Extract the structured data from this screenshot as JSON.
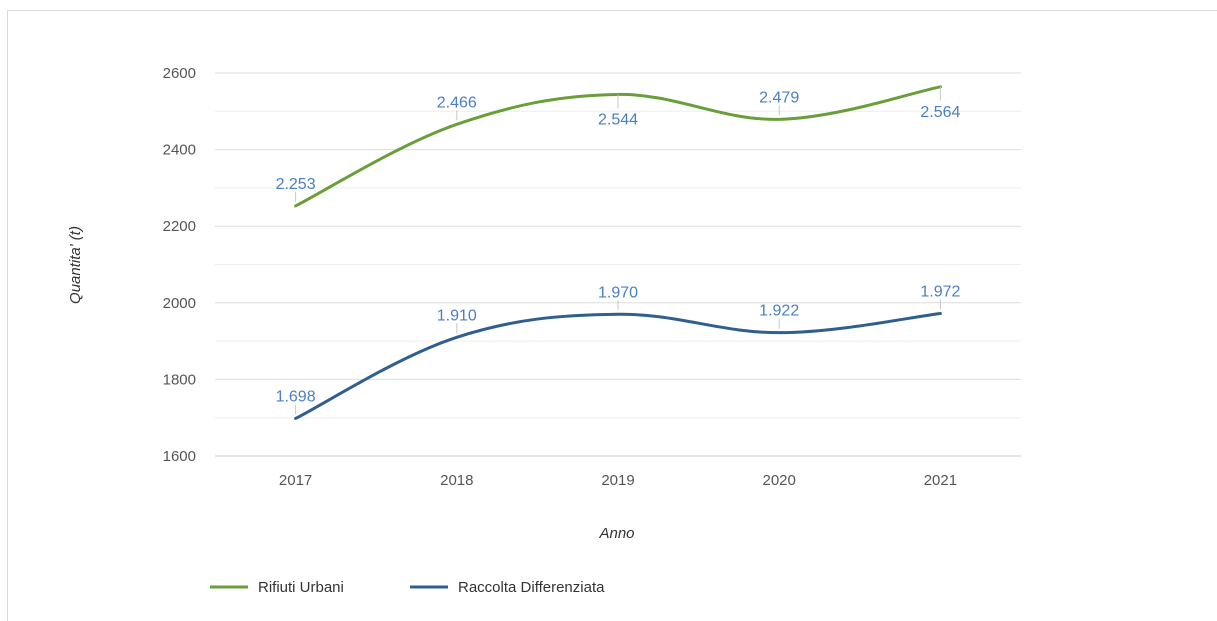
{
  "chart_data": {
    "type": "line",
    "categories": [
      "2017",
      "2018",
      "2019",
      "2020",
      "2021"
    ],
    "xlabel": "Anno",
    "ylabel": "Quantita' (t)",
    "ylim": [
      1600,
      2600
    ],
    "yticks": [
      1600,
      1800,
      2000,
      2200,
      2400,
      2600
    ],
    "ytick_labels": [
      "1600",
      "1800",
      "2000",
      "2200",
      "2400",
      "2600"
    ],
    "grid": true,
    "legend": "bottom-left",
    "series": [
      {
        "name": "Rifiuti Urbani",
        "color": "#6a9e3a",
        "values": [
          2253,
          2466,
          2544,
          2479,
          2564
        ],
        "labels": [
          "2.253",
          "2.466",
          "2.544",
          "2.479",
          "2.564"
        ]
      },
      {
        "name": "Raccolta Differenziata",
        "color": "#2f5f8f",
        "values": [
          1698,
          1910,
          1970,
          1922,
          1972
        ],
        "labels": [
          "1.698",
          "1.910",
          "1.970",
          "1.922",
          "1.972"
        ]
      }
    ],
    "data_label_color": "#4a7fc1"
  }
}
